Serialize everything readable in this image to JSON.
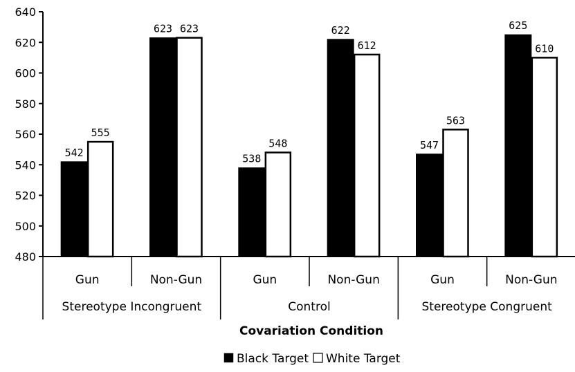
{
  "chart_data": {
    "type": "bar",
    "title": "",
    "xlabel": "Covariation Condition",
    "ylabel": "",
    "ylim": [
      480,
      640
    ],
    "yticks": [
      480,
      500,
      520,
      540,
      560,
      580,
      600,
      620,
      640
    ],
    "groups": [
      "Stereotype Incongruent",
      "Control",
      "Stereotype Congruent"
    ],
    "categories": [
      "Gun",
      "Non-Gun",
      "Gun",
      "Non-Gun",
      "Gun",
      "Non-Gun"
    ],
    "series": [
      {
        "name": "Black Target",
        "color": "#000000",
        "values": [
          542,
          623,
          538,
          622,
          547,
          625
        ]
      },
      {
        "name": "White Target",
        "color": "#ffffff",
        "values": [
          555,
          623,
          548,
          612,
          563,
          610
        ]
      }
    ],
    "grid": false,
    "legend_position": "bottom-center"
  }
}
